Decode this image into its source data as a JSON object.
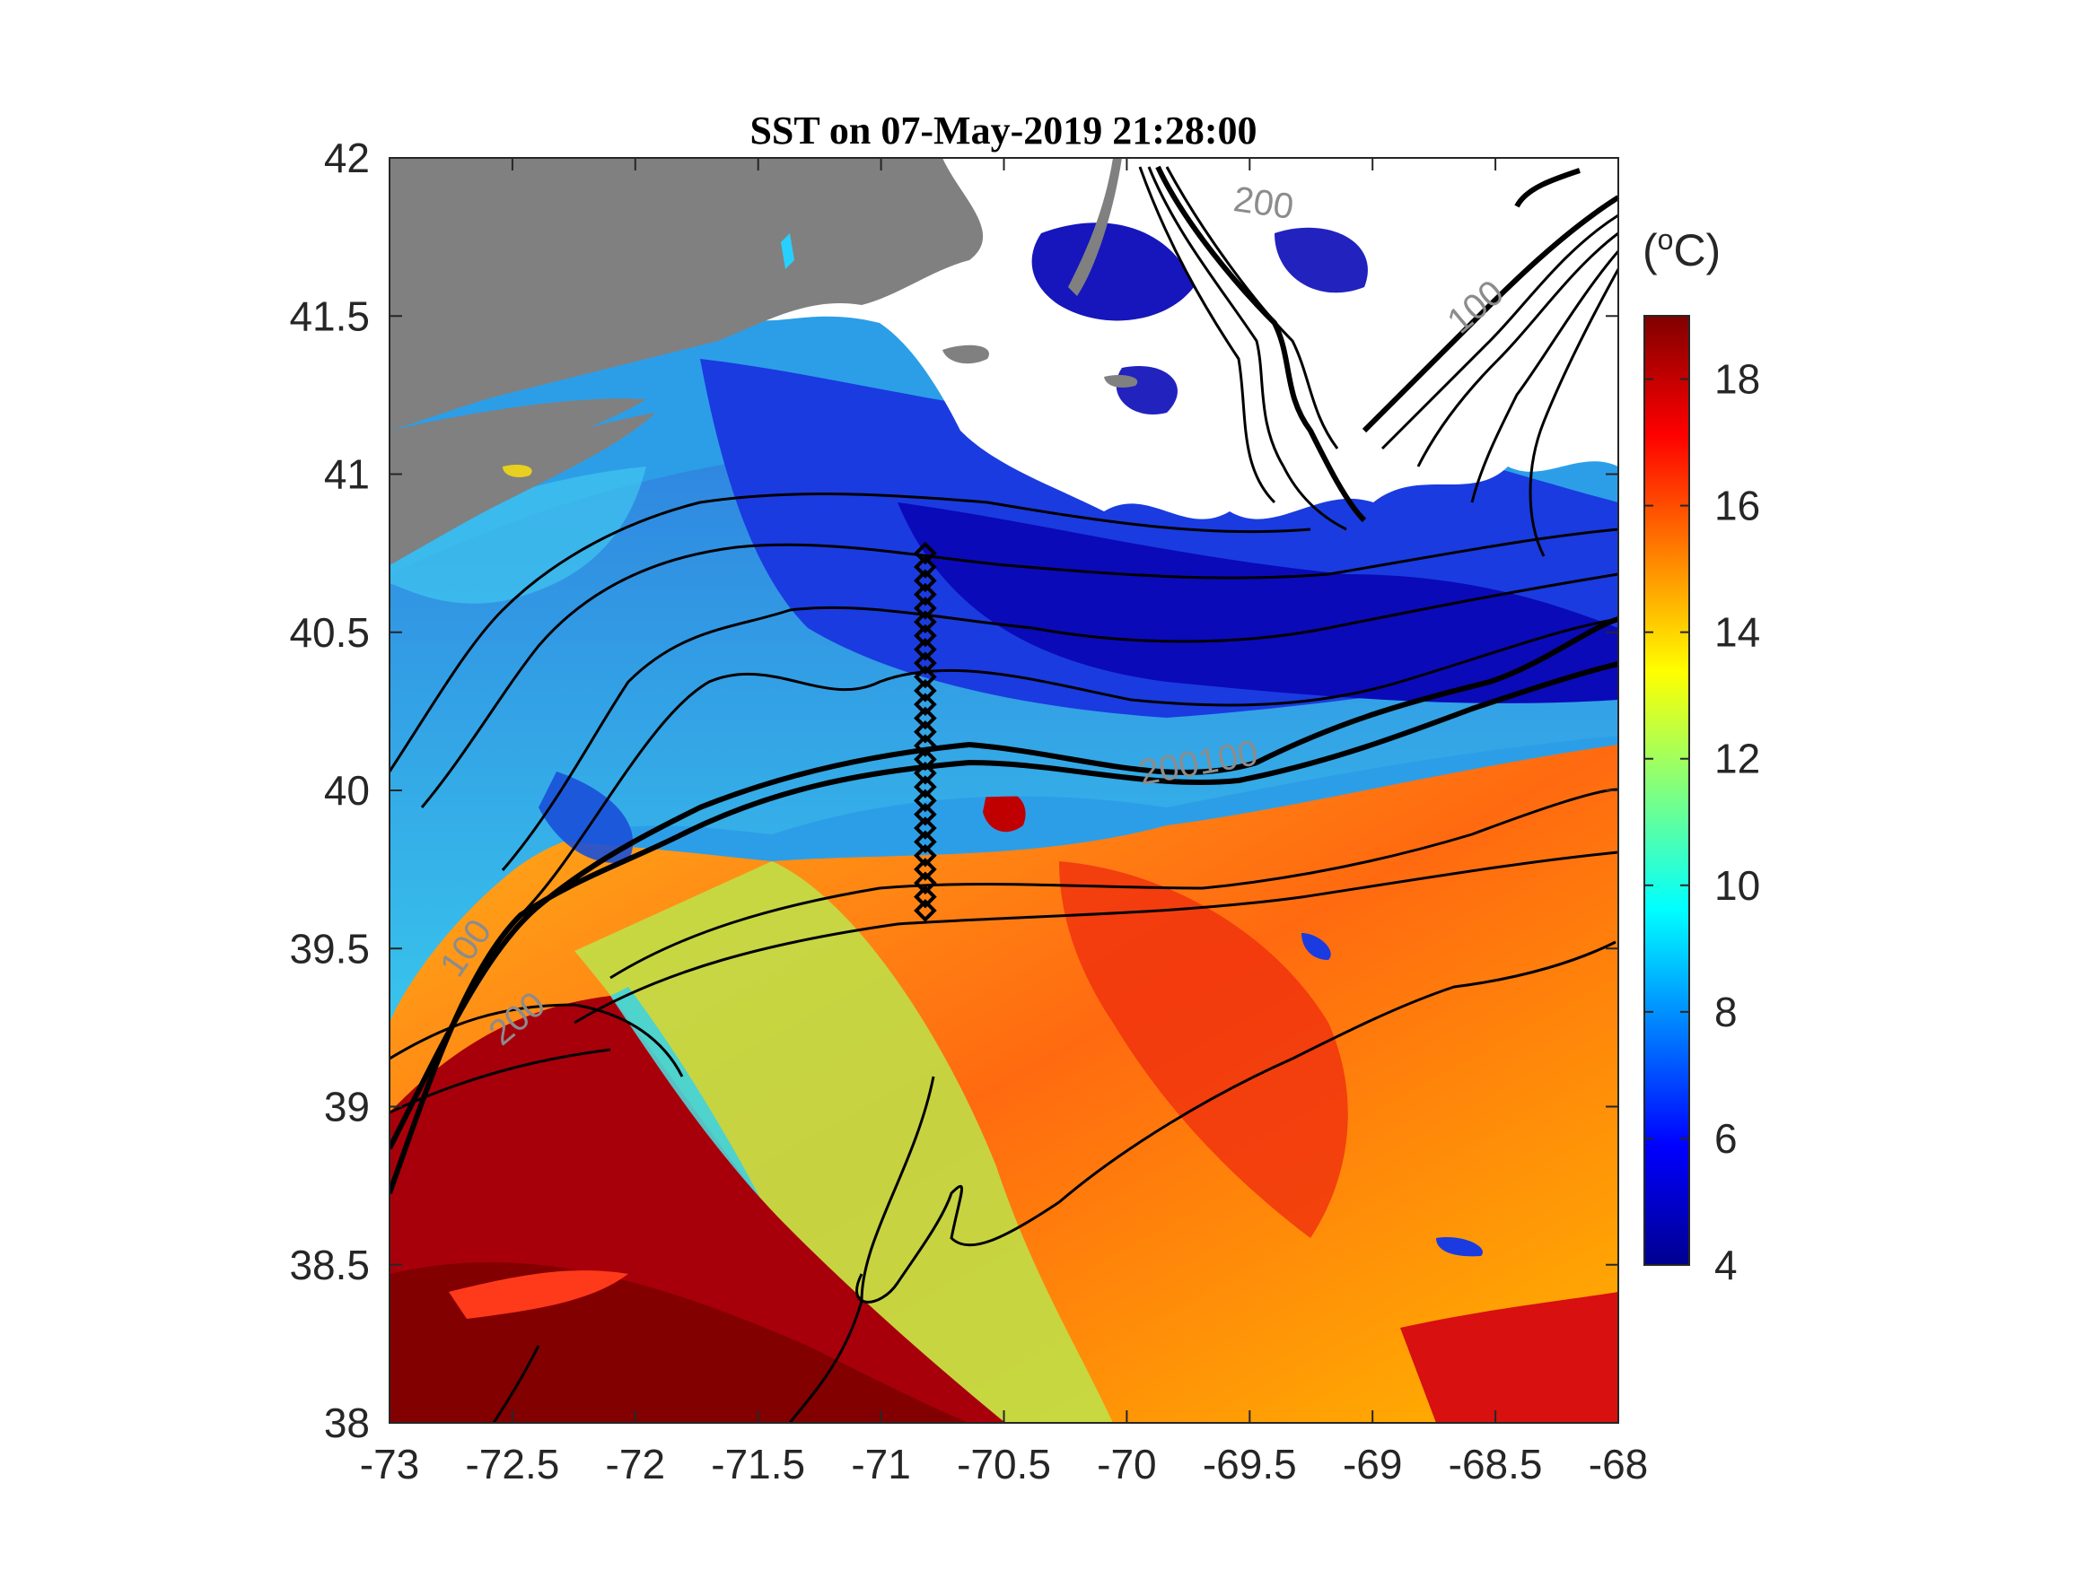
{
  "title": "SST on 07-May-2019 21:28:00",
  "colorbar": {
    "unit_prefix": "(",
    "unit_sup": "o",
    "unit_suffix": "C)",
    "min": 4,
    "max": 19,
    "ticks": [
      "4",
      "6",
      "8",
      "10",
      "12",
      "14",
      "16",
      "18"
    ],
    "colormap": "jet"
  },
  "map": {
    "lon_range": [
      -73,
      -68
    ],
    "lat_range": [
      38,
      42
    ],
    "x_ticks": [
      "-73",
      "-72.5",
      "-72",
      "-71.5",
      "-71",
      "-70.5",
      "-70",
      "-69.5",
      "-69",
      "-68.5",
      "-68"
    ],
    "y_ticks": [
      "38",
      "38.5",
      "39",
      "39.5",
      "40",
      "40.5",
      "41",
      "41.5",
      "42"
    ],
    "land_color": "#808080",
    "cloud_color": "#ffffff",
    "contour_labels": [
      {
        "text": "200",
        "lon": -69.45,
        "lat": 41.82
      },
      {
        "text": "100",
        "lon": -68.55,
        "lat": 41.5
      },
      {
        "text": "200100",
        "lon": -69.7,
        "lat": 40.05
      },
      {
        "text": "100",
        "lon": -72.65,
        "lat": 39.48
      },
      {
        "text": "200",
        "lon": -72.45,
        "lat": 39.25
      }
    ],
    "station_line": {
      "lon": -70.82,
      "lat_start": 40.75,
      "lat_end": 39.62,
      "marker": "diamond"
    }
  }
}
